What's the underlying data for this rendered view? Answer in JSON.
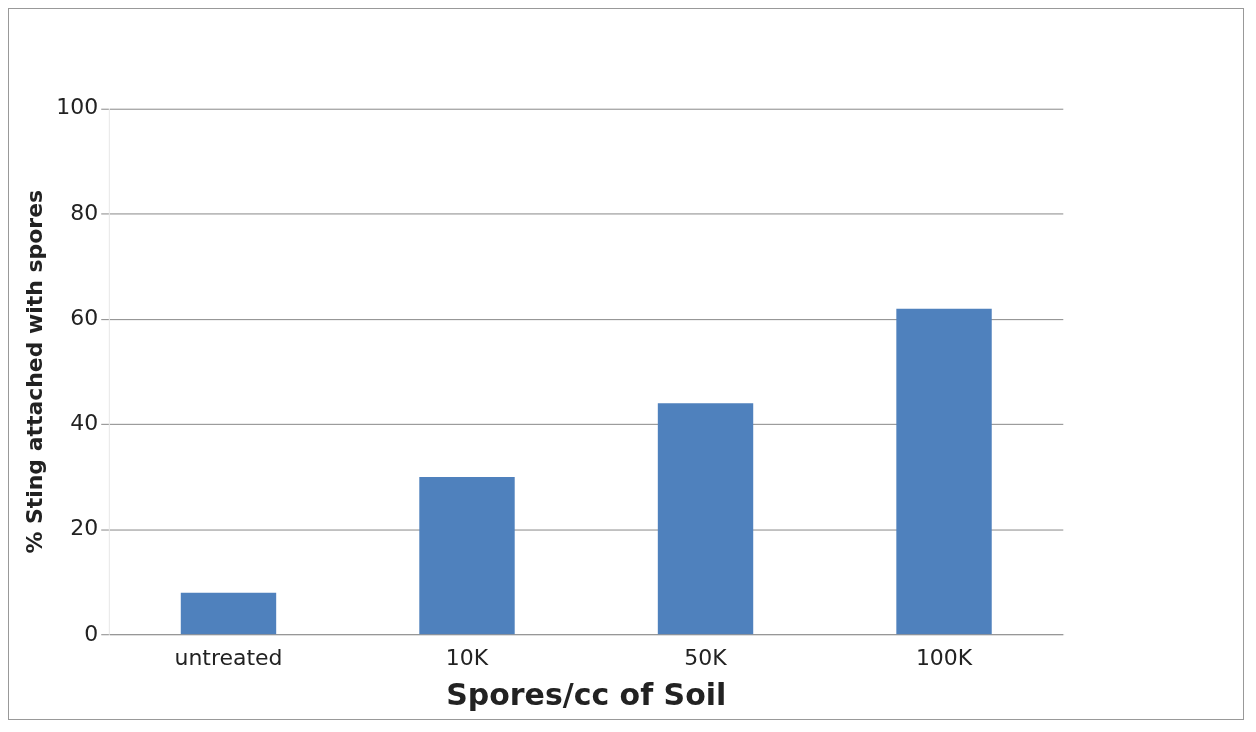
{
  "chart_data": {
    "type": "bar",
    "xlabel": "Spores/cc of Soil",
    "ylabel": "% Sting attached with spores",
    "categories": [
      "untreated",
      "10K",
      "50K",
      "100K"
    ],
    "values": [
      8,
      30,
      44,
      62
    ],
    "color": "#4f81bd",
    "ylim": [
      0,
      100
    ],
    "yticks": [
      0,
      20,
      40,
      60,
      80,
      100
    ],
    "grid": "y"
  }
}
